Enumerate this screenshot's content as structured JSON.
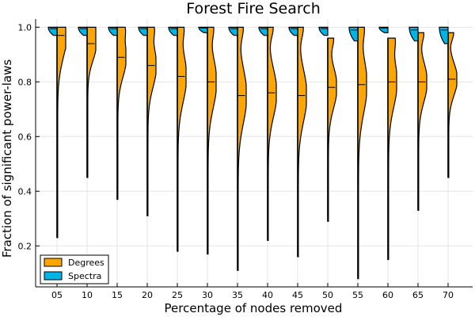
{
  "chart_data": {
    "type": "violin",
    "title": "Forest Fire Search",
    "xlabel": "Percentage of nodes removed",
    "ylabel": "Fraction of significant power-laws",
    "categories": [
      "05",
      "10",
      "15",
      "20",
      "25",
      "30",
      "35",
      "40",
      "45",
      "50",
      "55",
      "60",
      "65",
      "70"
    ],
    "ylim": [
      0.05,
      1.03
    ],
    "yticks": [
      "0.2",
      "0.4",
      "0.6",
      "0.8",
      "1.0"
    ],
    "grid": true,
    "legend_position": "bottom-left",
    "series": [
      {
        "name": "Degrees",
        "color": "#FFA500",
        "side": "right",
        "values": [
          {
            "min": 0.23,
            "max": 1.0,
            "median": 0.97
          },
          {
            "min": 0.45,
            "max": 1.0,
            "median": 0.94
          },
          {
            "min": 0.37,
            "max": 1.0,
            "median": 0.89
          },
          {
            "min": 0.31,
            "max": 1.0,
            "median": 0.86
          },
          {
            "min": 0.18,
            "max": 1.0,
            "median": 0.82
          },
          {
            "min": 0.17,
            "max": 1.0,
            "median": 0.8
          },
          {
            "min": 0.11,
            "max": 1.0,
            "median": 0.75
          },
          {
            "min": 0.22,
            "max": 1.0,
            "median": 0.76
          },
          {
            "min": 0.16,
            "max": 1.0,
            "median": 0.75
          },
          {
            "min": 0.29,
            "max": 0.96,
            "median": 0.78
          },
          {
            "min": 0.08,
            "max": 1.0,
            "median": 0.79
          },
          {
            "min": 0.15,
            "max": 0.96,
            "median": 0.8
          },
          {
            "min": 0.33,
            "max": 0.98,
            "median": 0.8
          },
          {
            "min": 0.45,
            "max": 0.98,
            "median": 0.81
          }
        ]
      },
      {
        "name": "Spectra",
        "color": "#00B4E6",
        "side": "left",
        "values": [
          {
            "min": 0.97,
            "max": 1.0,
            "median": 0.995
          },
          {
            "min": 0.97,
            "max": 1.0,
            "median": 0.995
          },
          {
            "min": 0.97,
            "max": 1.0,
            "median": 0.995
          },
          {
            "min": 0.97,
            "max": 1.0,
            "median": 0.995
          },
          {
            "min": 0.97,
            "max": 1.0,
            "median": 0.995
          },
          {
            "min": 0.98,
            "max": 1.0,
            "median": 0.997
          },
          {
            "min": 0.97,
            "max": 1.0,
            "median": 0.995
          },
          {
            "min": 0.97,
            "max": 1.0,
            "median": 0.995
          },
          {
            "min": 0.97,
            "max": 1.0,
            "median": 0.995
          },
          {
            "min": 0.97,
            "max": 1.0,
            "median": 0.995
          },
          {
            "min": 0.95,
            "max": 1.0,
            "median": 0.99
          },
          {
            "min": 0.98,
            "max": 1.0,
            "median": 0.997
          },
          {
            "min": 0.95,
            "max": 1.0,
            "median": 0.99
          },
          {
            "min": 0.94,
            "max": 1.0,
            "median": 0.99
          }
        ]
      }
    ]
  }
}
